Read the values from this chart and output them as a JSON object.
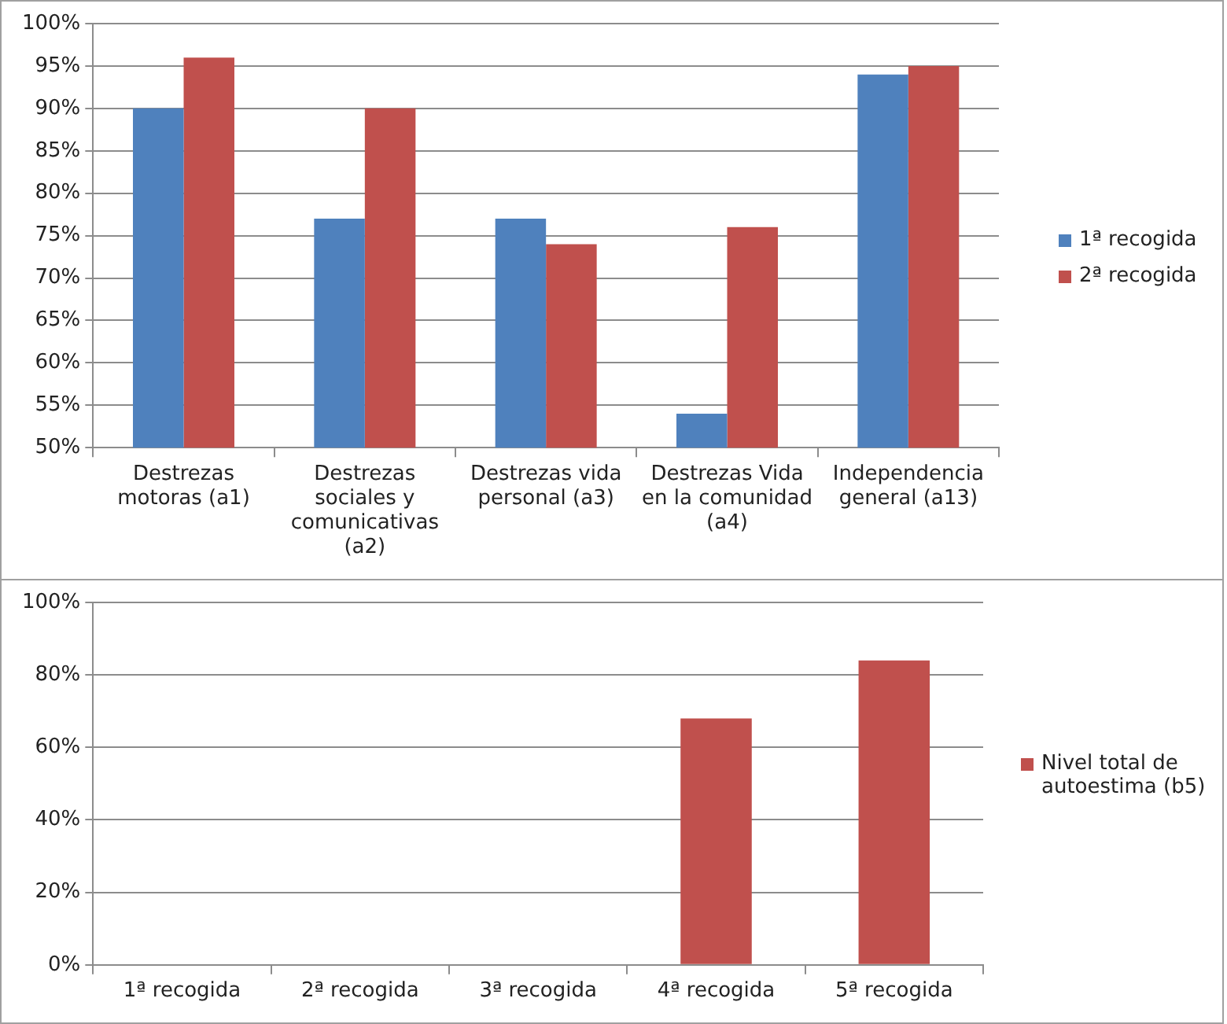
{
  "chart_data": [
    {
      "type": "bar",
      "categories": [
        "Destrezas motoras (a1)",
        "Destrezas sociales y comunicativas (a2)",
        "Destrezas vida personal (a3)",
        "Destrezas Vida en la comunidad (a4)",
        "Independencia general (a13)"
      ],
      "series": [
        {
          "name": "1ª recogida",
          "color": "#4f81bd",
          "values": [
            90,
            77,
            77,
            54,
            94
          ]
        },
        {
          "name": "2ª recogida",
          "color": "#c0504d",
          "values": [
            96,
            90,
            74,
            76,
            95
          ]
        }
      ],
      "ylim": [
        50,
        100
      ],
      "yticks": [
        {
          "value": 50,
          "label": "50%"
        },
        {
          "value": 55,
          "label": "55%"
        },
        {
          "value": 60,
          "label": "60%"
        },
        {
          "value": 65,
          "label": "65%"
        },
        {
          "value": 70,
          "label": "70%"
        },
        {
          "value": 75,
          "label": "75%"
        },
        {
          "value": 80,
          "label": "80%"
        },
        {
          "value": 85,
          "label": "85%"
        },
        {
          "value": 90,
          "label": "90%"
        },
        {
          "value": 95,
          "label": "95%"
        },
        {
          "value": 100,
          "label": "100%"
        }
      ],
      "grid": "y",
      "legend": "right"
    },
    {
      "type": "bar",
      "categories": [
        "1ª recogida",
        "2ª recogida",
        "3ª recogida",
        "4ª recogida",
        "5ª recogida"
      ],
      "series": [
        {
          "name": "Nivel total de autoestima (b5)",
          "color": "#c0504d",
          "values": [
            null,
            null,
            null,
            68,
            84
          ]
        }
      ],
      "ylim": [
        0,
        100
      ],
      "yticks": [
        {
          "value": 0,
          "label": "0%"
        },
        {
          "value": 20,
          "label": "20%"
        },
        {
          "value": 40,
          "label": "40%"
        },
        {
          "value": 60,
          "label": "60%"
        },
        {
          "value": 80,
          "label": "80%"
        },
        {
          "value": 100,
          "label": "100%"
        }
      ],
      "grid": "y",
      "legend": "right"
    }
  ]
}
